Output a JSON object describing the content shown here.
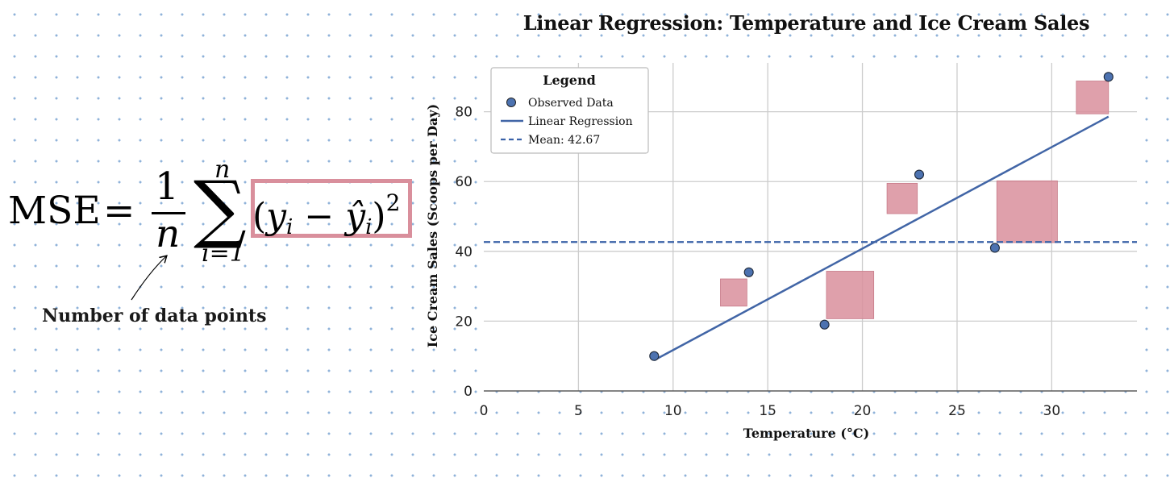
{
  "formula": {
    "lhs": "MSE",
    "equals": "=",
    "numerator": "1",
    "denominator": "n",
    "sum_symbol": "∑",
    "sum_upper": "n",
    "sum_lower": "i=1",
    "annotation": "Number of data points"
  },
  "colors": {
    "point_fill": "#4c72b0",
    "regression_line": "#4165a6",
    "mean_line": "#3a62a8",
    "residual_square": "#d98f9c",
    "grid": "#cccccc"
  },
  "chart_data": {
    "type": "scatter",
    "title": "Linear Regression: Temperature and Ice Cream Sales",
    "xlabel": "Temperature (°C)",
    "ylabel": "Ice Cream Sales (Scoops per Day)",
    "xlim": [
      0,
      34.5
    ],
    "ylim": [
      0,
      94
    ],
    "xticks": [
      0,
      5,
      10,
      15,
      20,
      25,
      30
    ],
    "yticks": [
      0,
      20,
      40,
      60,
      80
    ],
    "grid": true,
    "legend": {
      "title": "Legend",
      "placement": "top-left",
      "entries": [
        "Observed Data",
        "Linear Regression",
        "Mean: 42.67"
      ]
    },
    "points": [
      {
        "x": 9,
        "y": 10
      },
      {
        "x": 14,
        "y": 34
      },
      {
        "x": 18,
        "y": 19
      },
      {
        "x": 23,
        "y": 62
      },
      {
        "x": 27,
        "y": 41
      },
      {
        "x": 33,
        "y": 90
      }
    ],
    "regression": {
      "x0": 9,
      "y0": 8.8,
      "x1": 33,
      "y1": 78.6
    },
    "mean": 42.67,
    "residual_squares": [
      {
        "x0": 12.5,
        "x1": 13.9,
        "y0": 24.3,
        "y1": 32.1
      },
      {
        "x0": 18.1,
        "x1": 20.6,
        "y0": 20.7,
        "y1": 34.3
      },
      {
        "x0": 21.3,
        "x1": 22.9,
        "y0": 50.8,
        "y1": 59.5
      },
      {
        "x0": 27.1,
        "x1": 30.3,
        "y0": 42.5,
        "y1": 60.2
      },
      {
        "x0": 31.3,
        "x1": 33.0,
        "y0": 79.4,
        "y1": 88.8
      }
    ]
  }
}
